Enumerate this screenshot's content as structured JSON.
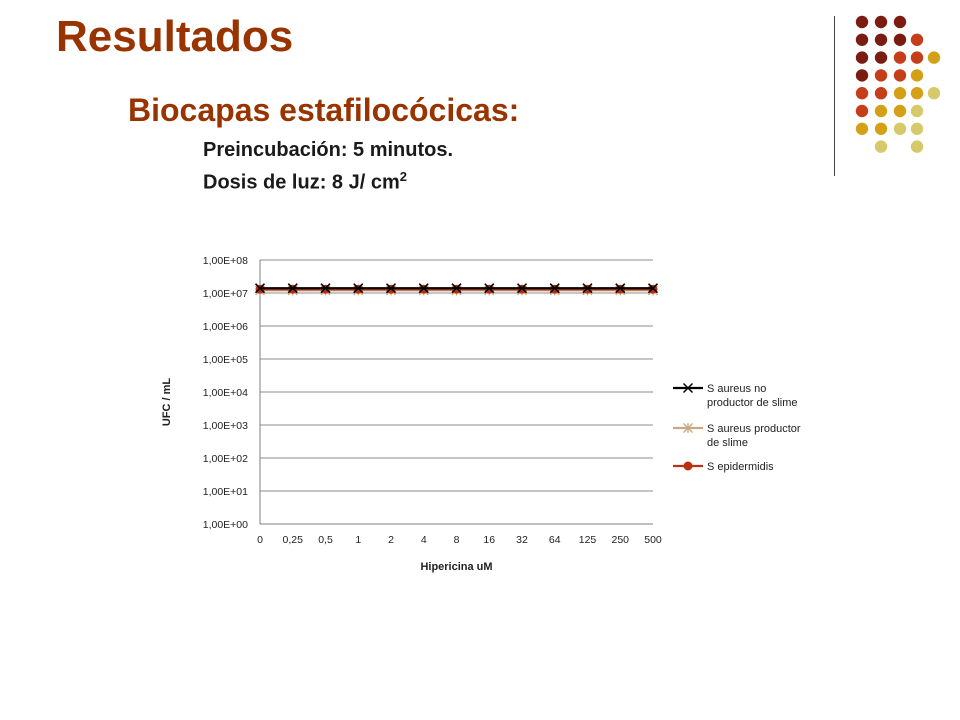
{
  "slide": {
    "title": "Resultados",
    "subtitle": "Biocapas estafilocócicas:",
    "line1": "Preincubación: 5 minutos.",
    "line2_text": "Dosis de luz: 8 J/ cm",
    "line2_sup": "2"
  },
  "colors": {
    "title": "#993300",
    "dots": [
      "#7b1c12",
      "#c63d1a",
      "#d4a017",
      "#d6c96a"
    ]
  },
  "chart_data": {
    "type": "line",
    "title": "",
    "xlabel": "Hipericina uM",
    "ylabel": "UFC / mL",
    "y_scale": "log",
    "ylim": [
      1,
      100000000
    ],
    "y_tick_labels": [
      "1,00E+00",
      "1,00E+01",
      "1,00E+02",
      "1,00E+03",
      "1,00E+04",
      "1,00E+05",
      "1,00E+06",
      "1,00E+07",
      "1,00E+08"
    ],
    "categories": [
      "0",
      "0,25",
      "0,5",
      "1",
      "2",
      "4",
      "8",
      "16",
      "32",
      "64",
      "125",
      "250",
      "500"
    ],
    "grid": true,
    "legend": "right",
    "series": [
      {
        "name": "S aureus no productor de slime",
        "color": "#000000",
        "marker": "x",
        "values": [
          14000000,
          14000000,
          14000000,
          14000000,
          14000000,
          14000000,
          14000000,
          14000000,
          14000000,
          14000000,
          14000000,
          14000000,
          14000000
        ]
      },
      {
        "name": "S aureus productor de slime",
        "color": "#c8a882",
        "marker": "star",
        "values": [
          12000000,
          12000000,
          12000000,
          12000000,
          12000000,
          12000000,
          12000000,
          12000000,
          12000000,
          12000000,
          12000000,
          12000000,
          12000000
        ]
      },
      {
        "name": "S epidermidis",
        "color": "#b8300e",
        "marker": "circle",
        "values": [
          13000000,
          13000000,
          13000000,
          13000000,
          13000000,
          13000000,
          13000000,
          13000000,
          13000000,
          13000000,
          13000000,
          13000000,
          13000000
        ]
      }
    ]
  }
}
